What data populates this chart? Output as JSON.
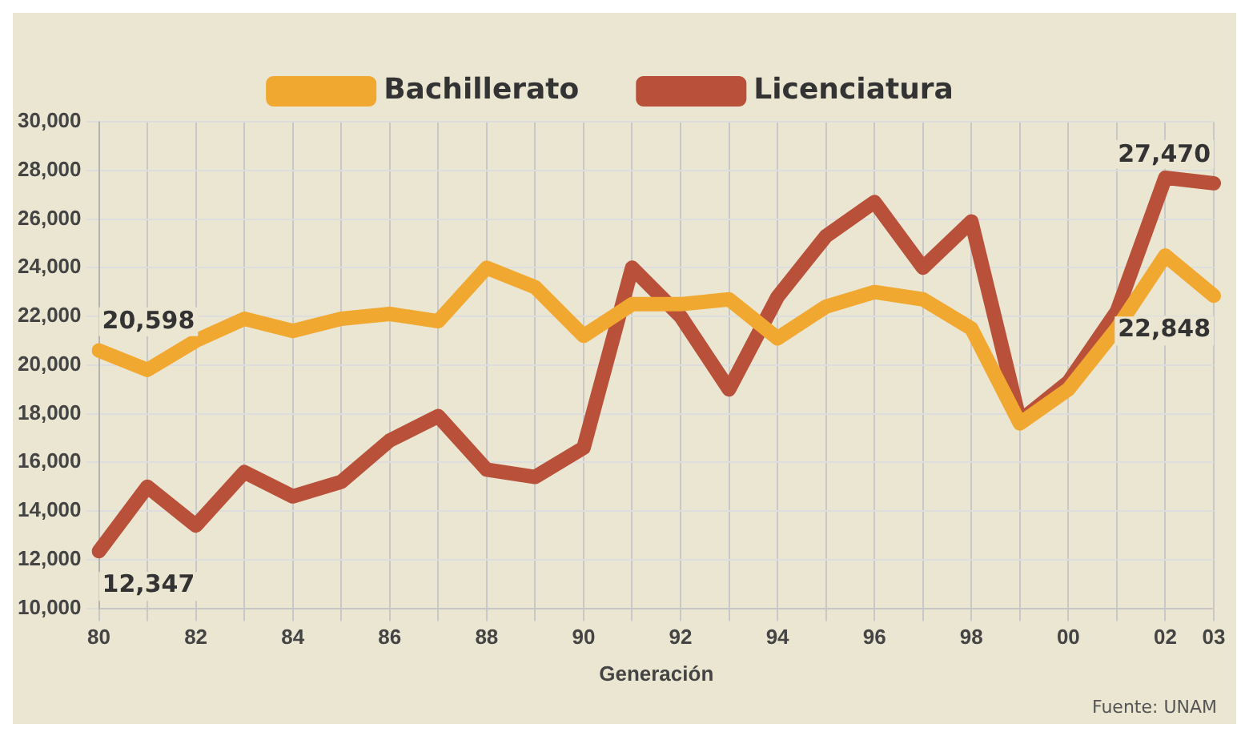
{
  "chart_data": {
    "type": "line",
    "xlabel": "Generación",
    "annotations": [
      "Fuente: UNAM"
    ],
    "categories": [
      "80",
      null,
      "82",
      null,
      "84",
      null,
      "86",
      null,
      "88",
      null,
      "90",
      null,
      "92",
      null,
      "94",
      null,
      "96",
      null,
      "98",
      null,
      "00",
      null,
      "02",
      "03"
    ],
    "series": [
      {
        "name": "Bachillerato",
        "color": "#f0a830",
        "values": [
          20598,
          19800,
          21000,
          21900,
          21400,
          21900,
          22100,
          21800,
          24000,
          23200,
          21200,
          22500,
          22500,
          22700,
          21100,
          22400,
          23000,
          22700,
          21500,
          17600,
          19000,
          21500,
          24500,
          22848
        ],
        "value_labels": [
          "20,598",
          null,
          null,
          null,
          null,
          null,
          null,
          null,
          null,
          null,
          null,
          null,
          null,
          null,
          null,
          null,
          null,
          null,
          null,
          null,
          null,
          null,
          null,
          "22,848"
        ]
      },
      {
        "name": "Licenciatura",
        "color": "#b8503a",
        "values": [
          12347,
          15000,
          13400,
          15600,
          14600,
          15200,
          16900,
          17900,
          15700,
          15400,
          16600,
          24000,
          22000,
          19000,
          22800,
          25300,
          26700,
          24000,
          25900,
          17700,
          19300,
          22200,
          27700,
          27470
        ],
        "value_labels": [
          "12,347",
          null,
          null,
          null,
          null,
          null,
          null,
          null,
          null,
          null,
          null,
          null,
          null,
          null,
          null,
          null,
          null,
          null,
          null,
          null,
          null,
          null,
          null,
          "27,470"
        ]
      }
    ],
    "ylim": [
      10000,
      30000
    ],
    "yticks": [
      {
        "value": 10000,
        "label": "10,000"
      },
      {
        "value": 12000,
        "label": "12,000"
      },
      {
        "value": 14000,
        "label": "14,000"
      },
      {
        "value": 16000,
        "label": "16,000"
      },
      {
        "value": 18000,
        "label": "18,000"
      },
      {
        "value": 20000,
        "label": "20,000"
      },
      {
        "value": 22000,
        "label": "22,000"
      },
      {
        "value": 24000,
        "label": "24,000"
      },
      {
        "value": 26000,
        "label": "26,000"
      },
      {
        "value": 28000,
        "label": "28,000"
      },
      {
        "value": 30000,
        "label": "30,000"
      }
    ],
    "grid": true,
    "legend": "top",
    "marker": "none",
    "line_style": "solid"
  }
}
